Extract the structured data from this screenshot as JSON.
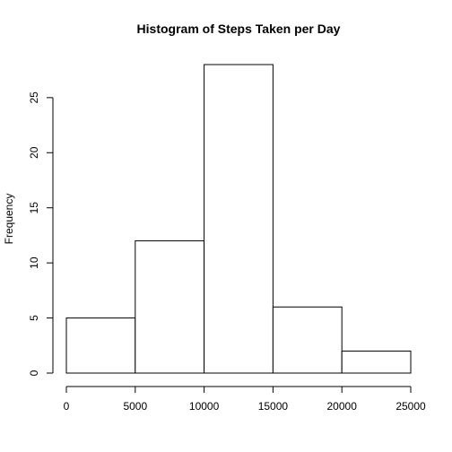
{
  "chart_data": {
    "type": "bar",
    "title": "Histogram of Steps Taken per Day",
    "xlabel": "",
    "ylabel": "Frequency",
    "bins": [
      {
        "from": 0,
        "to": 5000,
        "value": 5
      },
      {
        "from": 5000,
        "to": 10000,
        "value": 12
      },
      {
        "from": 10000,
        "to": 15000,
        "value": 28
      },
      {
        "from": 15000,
        "to": 20000,
        "value": 6
      },
      {
        "from": 20000,
        "to": 25000,
        "value": 2
      }
    ],
    "xlim": [
      0,
      25000
    ],
    "ylim": [
      0,
      28
    ],
    "xticks": [
      "0",
      "5000",
      "10000",
      "15000",
      "20000",
      "25000"
    ],
    "yticks": [
      "0",
      "5",
      "10",
      "15",
      "20",
      "25"
    ],
    "grid": false,
    "bar_fill": "#ffffff",
    "bar_stroke": "#000000"
  }
}
